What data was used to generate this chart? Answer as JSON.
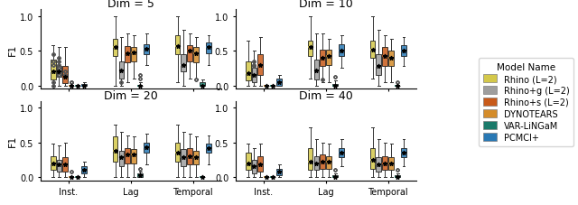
{
  "dims": [
    5,
    10,
    20,
    40
  ],
  "groups": [
    "Inst.",
    "Lag",
    "Temporal"
  ],
  "model_names": [
    "Rhino (L=2)",
    "Rhino+g (L=2)",
    "Rhino+s (L=2)",
    "DYNOTEARS",
    "VAR-LiNGaM",
    "PCMCI+"
  ],
  "colors": [
    "#d4c84a",
    "#9e9e9e",
    "#c85a1a",
    "#d48c2a",
    "#1a7a6a",
    "#2878b4"
  ],
  "title_fontsize": 9,
  "label_fontsize": 8,
  "tick_fontsize": 7,
  "legend_fontsize": 7.5,
  "box_data": {
    "5": {
      "Inst.": [
        {
          "med": 0.2,
          "q1": 0.08,
          "q3": 0.38,
          "whislo": 0.0,
          "whishi": 0.58,
          "fliers": [
            0.0,
            0.05,
            0.45,
            0.3,
            0.35
          ]
        },
        {
          "med": 0.2,
          "q1": 0.12,
          "q3": 0.28,
          "whislo": 0.0,
          "whishi": 0.55,
          "fliers": [
            0.15,
            0.25,
            0.3,
            0.35,
            0.4
          ]
        },
        {
          "med": 0.13,
          "q1": 0.03,
          "q3": 0.28,
          "whislo": 0.0,
          "whishi": 0.55,
          "fliers": [
            0.15,
            0.2
          ]
        },
        {
          "med": 0.0,
          "q1": 0.0,
          "q3": 0.0,
          "whislo": 0.0,
          "whishi": 0.0,
          "fliers": [
            0.05,
            0.05
          ]
        },
        {
          "med": 0.0,
          "q1": 0.0,
          "q3": 0.0,
          "whislo": 0.0,
          "whishi": 0.0,
          "fliers": []
        },
        {
          "med": 0.0,
          "q1": 0.0,
          "q3": 0.02,
          "whislo": 0.0,
          "whishi": 0.05,
          "fliers": []
        }
      ],
      "Lag": [
        {
          "med": 0.55,
          "q1": 0.43,
          "q3": 0.68,
          "whislo": 0.0,
          "whishi": 1.0,
          "fliers": []
        },
        {
          "med": 0.22,
          "q1": 0.1,
          "q3": 0.35,
          "whislo": 0.0,
          "whishi": 0.7,
          "fliers": [
            0.05
          ]
        },
        {
          "med": 0.47,
          "q1": 0.33,
          "q3": 0.57,
          "whislo": 0.05,
          "whishi": 0.75,
          "fliers": []
        },
        {
          "med": 0.48,
          "q1": 0.35,
          "q3": 0.55,
          "whislo": 0.1,
          "whishi": 0.72,
          "fliers": []
        },
        {
          "med": 0.0,
          "q1": 0.0,
          "q3": 0.0,
          "whislo": 0.0,
          "whishi": 0.05,
          "fliers": [
            0.1,
            0.15
          ]
        },
        {
          "med": 0.53,
          "q1": 0.45,
          "q3": 0.6,
          "whislo": 0.3,
          "whishi": 0.75,
          "fliers": []
        }
      ],
      "Temporal": [
        {
          "med": 0.57,
          "q1": 0.45,
          "q3": 0.72,
          "whislo": 0.05,
          "whishi": 1.0,
          "fliers": []
        },
        {
          "med": 0.3,
          "q1": 0.2,
          "q3": 0.45,
          "whislo": 0.0,
          "whishi": 0.8,
          "fliers": []
        },
        {
          "med": 0.5,
          "q1": 0.35,
          "q3": 0.58,
          "whislo": 0.1,
          "whishi": 0.75,
          "fliers": []
        },
        {
          "med": 0.47,
          "q1": 0.33,
          "q3": 0.55,
          "whislo": 0.1,
          "whishi": 0.7,
          "fliers": [
            0.08
          ]
        },
        {
          "med": 0.0,
          "q1": 0.0,
          "q3": 0.05,
          "whislo": 0.0,
          "whishi": 0.08,
          "fliers": []
        },
        {
          "med": 0.55,
          "q1": 0.47,
          "q3": 0.62,
          "whislo": 0.3,
          "whishi": 0.72,
          "fliers": []
        }
      ]
    },
    "10": {
      "Inst.": [
        {
          "med": 0.18,
          "q1": 0.07,
          "q3": 0.35,
          "whislo": 0.0,
          "whishi": 0.65,
          "fliers": []
        },
        {
          "med": 0.15,
          "q1": 0.05,
          "q3": 0.25,
          "whislo": 0.0,
          "whishi": 0.5,
          "fliers": [
            0.28,
            0.3,
            0.35
          ]
        },
        {
          "med": 0.3,
          "q1": 0.15,
          "q3": 0.45,
          "whislo": 0.0,
          "whishi": 0.7,
          "fliers": []
        },
        {
          "med": 0.0,
          "q1": 0.0,
          "q3": 0.0,
          "whislo": 0.0,
          "whishi": 0.0,
          "fliers": []
        },
        {
          "med": 0.0,
          "q1": 0.0,
          "q3": 0.0,
          "whislo": 0.0,
          "whishi": 0.0,
          "fliers": []
        },
        {
          "med": 0.05,
          "q1": 0.0,
          "q3": 0.1,
          "whislo": 0.0,
          "whishi": 0.15,
          "fliers": []
        }
      ],
      "Lag": [
        {
          "med": 0.55,
          "q1": 0.42,
          "q3": 0.65,
          "whislo": 0.1,
          "whishi": 1.0,
          "fliers": []
        },
        {
          "med": 0.22,
          "q1": 0.08,
          "q3": 0.38,
          "whislo": 0.0,
          "whishi": 0.75,
          "fliers": []
        },
        {
          "med": 0.4,
          "q1": 0.28,
          "q3": 0.52,
          "whislo": 0.05,
          "whishi": 0.75,
          "fliers": [
            0.08
          ]
        },
        {
          "med": 0.42,
          "q1": 0.3,
          "q3": 0.52,
          "whislo": 0.05,
          "whishi": 0.68,
          "fliers": []
        },
        {
          "med": 0.0,
          "q1": 0.0,
          "q3": 0.02,
          "whislo": 0.0,
          "whishi": 0.07,
          "fliers": [
            0.12
          ]
        },
        {
          "med": 0.5,
          "q1": 0.42,
          "q3": 0.6,
          "whislo": 0.25,
          "whishi": 0.72,
          "fliers": []
        }
      ],
      "Temporal": [
        {
          "med": 0.52,
          "q1": 0.4,
          "q3": 0.65,
          "whislo": 0.1,
          "whishi": 1.0,
          "fliers": []
        },
        {
          "med": 0.28,
          "q1": 0.15,
          "q3": 0.45,
          "whislo": 0.0,
          "whishi": 0.8,
          "fliers": []
        },
        {
          "med": 0.42,
          "q1": 0.28,
          "q3": 0.55,
          "whislo": 0.05,
          "whishi": 0.72,
          "fliers": []
        },
        {
          "med": 0.4,
          "q1": 0.28,
          "q3": 0.5,
          "whislo": 0.05,
          "whishi": 0.68,
          "fliers": []
        },
        {
          "med": 0.0,
          "q1": 0.0,
          "q3": 0.0,
          "whislo": 0.0,
          "whishi": 0.0,
          "fliers": [
            0.05
          ]
        },
        {
          "med": 0.5,
          "q1": 0.43,
          "q3": 0.58,
          "whislo": 0.28,
          "whishi": 0.7,
          "fliers": []
        }
      ]
    },
    "20": {
      "Inst.": [
        {
          "med": 0.2,
          "q1": 0.1,
          "q3": 0.3,
          "whislo": 0.0,
          "whishi": 0.48,
          "fliers": []
        },
        {
          "med": 0.18,
          "q1": 0.08,
          "q3": 0.25,
          "whislo": 0.0,
          "whishi": 0.45,
          "fliers": []
        },
        {
          "med": 0.18,
          "q1": 0.08,
          "q3": 0.28,
          "whislo": 0.0,
          "whishi": 0.5,
          "fliers": []
        },
        {
          "med": 0.0,
          "q1": 0.0,
          "q3": 0.0,
          "whislo": 0.0,
          "whishi": 0.0,
          "fliers": [
            0.08
          ]
        },
        {
          "med": 0.0,
          "q1": 0.0,
          "q3": 0.0,
          "whislo": 0.0,
          "whishi": 0.0,
          "fliers": []
        },
        {
          "med": 0.1,
          "q1": 0.05,
          "q3": 0.15,
          "whislo": 0.0,
          "whishi": 0.22,
          "fliers": []
        }
      ],
      "Lag": [
        {
          "med": 0.38,
          "q1": 0.22,
          "q3": 0.58,
          "whislo": 0.0,
          "whishi": 0.75,
          "fliers": []
        },
        {
          "med": 0.28,
          "q1": 0.15,
          "q3": 0.38,
          "whislo": 0.0,
          "whishi": 0.65,
          "fliers": []
        },
        {
          "med": 0.32,
          "q1": 0.2,
          "q3": 0.42,
          "whislo": 0.0,
          "whishi": 0.6,
          "fliers": []
        },
        {
          "med": 0.32,
          "q1": 0.2,
          "q3": 0.4,
          "whislo": 0.0,
          "whishi": 0.58,
          "fliers": []
        },
        {
          "med": 0.02,
          "q1": 0.0,
          "q3": 0.05,
          "whislo": 0.0,
          "whishi": 0.08,
          "fliers": [
            0.12
          ]
        },
        {
          "med": 0.43,
          "q1": 0.35,
          "q3": 0.5,
          "whislo": 0.18,
          "whishi": 0.62,
          "fliers": []
        }
      ],
      "Temporal": [
        {
          "med": 0.35,
          "q1": 0.22,
          "q3": 0.5,
          "whislo": 0.0,
          "whishi": 0.75,
          "fliers": []
        },
        {
          "med": 0.28,
          "q1": 0.15,
          "q3": 0.4,
          "whislo": 0.0,
          "whishi": 0.65,
          "fliers": []
        },
        {
          "med": 0.3,
          "q1": 0.18,
          "q3": 0.42,
          "whislo": 0.0,
          "whishi": 0.62,
          "fliers": []
        },
        {
          "med": 0.28,
          "q1": 0.18,
          "q3": 0.38,
          "whislo": 0.0,
          "whishi": 0.58,
          "fliers": []
        },
        {
          "med": 0.0,
          "q1": 0.0,
          "q3": 0.0,
          "whislo": 0.0,
          "whishi": 0.0,
          "fliers": []
        },
        {
          "med": 0.42,
          "q1": 0.35,
          "q3": 0.48,
          "whislo": 0.18,
          "whishi": 0.6,
          "fliers": []
        }
      ]
    },
    "40": {
      "Inst.": [
        {
          "med": 0.2,
          "q1": 0.1,
          "q3": 0.35,
          "whislo": 0.0,
          "whishi": 0.48,
          "fliers": []
        },
        {
          "med": 0.15,
          "q1": 0.05,
          "q3": 0.25,
          "whislo": 0.0,
          "whishi": 0.42,
          "fliers": []
        },
        {
          "med": 0.18,
          "q1": 0.08,
          "q3": 0.3,
          "whislo": 0.0,
          "whishi": 0.48,
          "fliers": []
        },
        {
          "med": 0.0,
          "q1": 0.0,
          "q3": 0.0,
          "whislo": 0.0,
          "whishi": 0.0,
          "fliers": []
        },
        {
          "med": 0.0,
          "q1": 0.0,
          "q3": 0.0,
          "whislo": 0.0,
          "whishi": 0.0,
          "fliers": []
        },
        {
          "med": 0.08,
          "q1": 0.03,
          "q3": 0.12,
          "whislo": 0.0,
          "whishi": 0.18,
          "fliers": []
        }
      ],
      "Lag": [
        {
          "med": 0.22,
          "q1": 0.1,
          "q3": 0.42,
          "whislo": 0.0,
          "whishi": 0.72,
          "fliers": []
        },
        {
          "med": 0.2,
          "q1": 0.1,
          "q3": 0.3,
          "whislo": 0.0,
          "whishi": 0.55,
          "fliers": []
        },
        {
          "med": 0.22,
          "q1": 0.12,
          "q3": 0.32,
          "whislo": 0.0,
          "whishi": 0.5,
          "fliers": []
        },
        {
          "med": 0.22,
          "q1": 0.12,
          "q3": 0.3,
          "whislo": 0.0,
          "whishi": 0.48,
          "fliers": []
        },
        {
          "med": 0.0,
          "q1": 0.0,
          "q3": 0.02,
          "whislo": 0.0,
          "whishi": 0.05,
          "fliers": [
            0.1
          ]
        },
        {
          "med": 0.35,
          "q1": 0.28,
          "q3": 0.42,
          "whislo": 0.15,
          "whishi": 0.55,
          "fliers": []
        }
      ],
      "Temporal": [
        {
          "med": 0.25,
          "q1": 0.12,
          "q3": 0.42,
          "whislo": 0.0,
          "whishi": 0.72,
          "fliers": []
        },
        {
          "med": 0.18,
          "q1": 0.08,
          "q3": 0.28,
          "whislo": 0.0,
          "whishi": 0.55,
          "fliers": []
        },
        {
          "med": 0.2,
          "q1": 0.1,
          "q3": 0.3,
          "whislo": 0.0,
          "whishi": 0.5,
          "fliers": []
        },
        {
          "med": 0.2,
          "q1": 0.1,
          "q3": 0.28,
          "whislo": 0.0,
          "whishi": 0.48,
          "fliers": []
        },
        {
          "med": 0.0,
          "q1": 0.0,
          "q3": 0.02,
          "whislo": 0.0,
          "whishi": 0.05,
          "fliers": [
            0.1
          ]
        },
        {
          "med": 0.35,
          "q1": 0.28,
          "q3": 0.42,
          "whislo": 0.15,
          "whishi": 0.55,
          "fliers": []
        }
      ]
    }
  }
}
